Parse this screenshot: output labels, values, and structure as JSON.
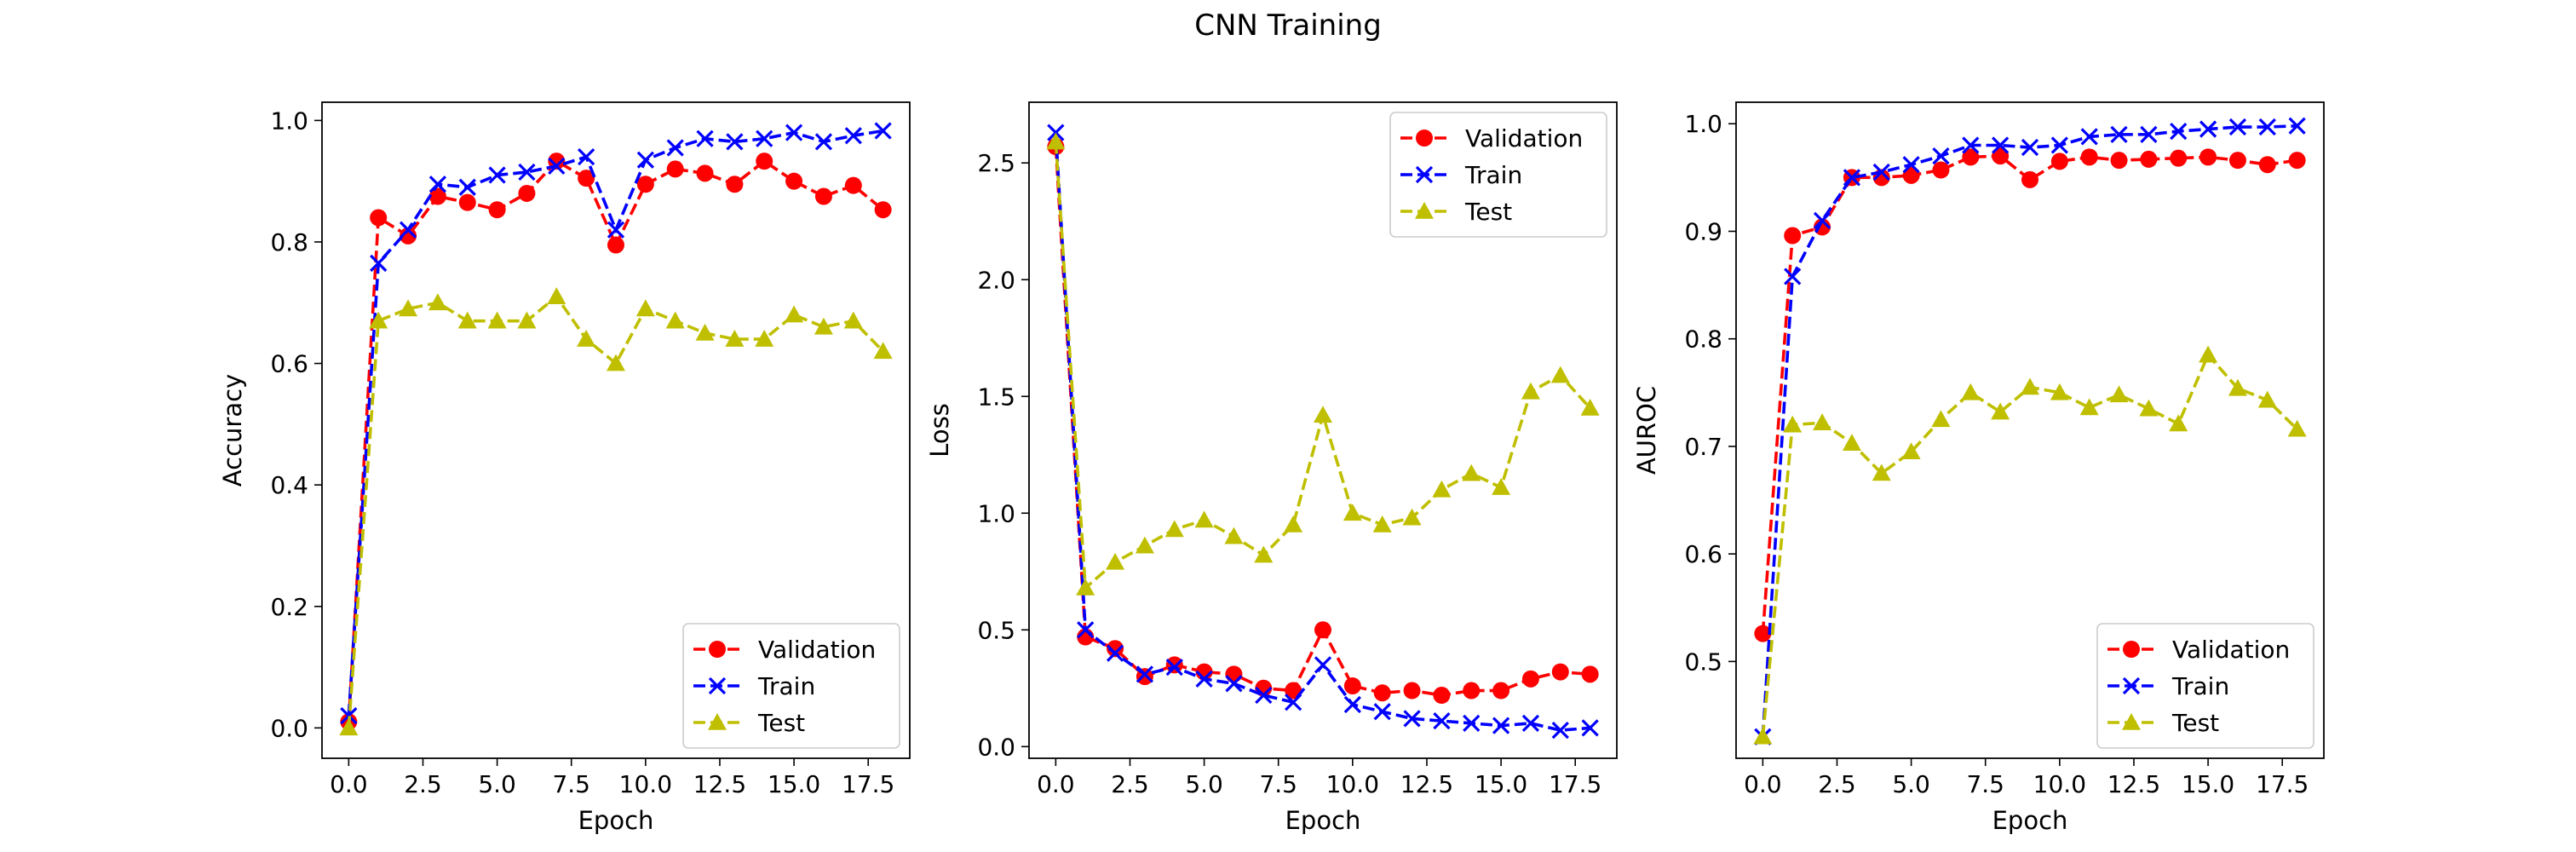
{
  "figure": {
    "title": "CNN Training"
  },
  "colors": {
    "Validation": "#ff0000",
    "Train": "#0000ff",
    "Test": "#bfbf00"
  },
  "chart_data": [
    {
      "type": "line",
      "xlabel": "Epoch",
      "ylabel": "Accuracy",
      "xlim": [
        -0.9,
        18.9
      ],
      "ylim": [
        -0.05,
        1.03
      ],
      "xticks": [
        0.0,
        2.5,
        5.0,
        7.5,
        10.0,
        12.5,
        15.0,
        17.5
      ],
      "yticks": [
        0.0,
        0.2,
        0.4,
        0.6,
        0.8,
        1.0
      ],
      "legend": "lower-right",
      "x": [
        0,
        1,
        2,
        3,
        4,
        5,
        6,
        7,
        8,
        9,
        10,
        11,
        12,
        13,
        14,
        15,
        16,
        17,
        18
      ],
      "series": [
        {
          "name": "Validation",
          "marker": "circle",
          "values": [
            0.01,
            0.84,
            0.81,
            0.875,
            0.865,
            0.853,
            0.88,
            0.933,
            0.905,
            0.795,
            0.895,
            0.92,
            0.913,
            0.895,
            0.933,
            0.9,
            0.875,
            0.893,
            0.853
          ]
        },
        {
          "name": "Train",
          "marker": "x",
          "values": [
            0.02,
            0.765,
            0.82,
            0.895,
            0.89,
            0.91,
            0.915,
            0.925,
            0.94,
            0.82,
            0.935,
            0.955,
            0.97,
            0.965,
            0.97,
            0.98,
            0.965,
            0.975,
            0.983
          ]
        },
        {
          "name": "Test",
          "marker": "triangle",
          "values": [
            0.0,
            0.67,
            0.69,
            0.7,
            0.67,
            0.67,
            0.67,
            0.71,
            0.64,
            0.6,
            0.69,
            0.67,
            0.65,
            0.64,
            0.64,
            0.68,
            0.66,
            0.67,
            0.62
          ]
        }
      ]
    },
    {
      "type": "line",
      "xlabel": "Epoch",
      "ylabel": "Loss",
      "xlim": [
        -0.9,
        18.9
      ],
      "ylim": [
        -0.05,
        2.76
      ],
      "xticks": [
        0.0,
        2.5,
        5.0,
        7.5,
        10.0,
        12.5,
        15.0,
        17.5
      ],
      "yticks": [
        0.0,
        0.5,
        1.0,
        1.5,
        2.0,
        2.5
      ],
      "legend": "upper-right",
      "x": [
        0,
        1,
        2,
        3,
        4,
        5,
        6,
        7,
        8,
        9,
        10,
        11,
        12,
        13,
        14,
        15,
        16,
        17,
        18
      ],
      "series": [
        {
          "name": "Validation",
          "marker": "circle",
          "values": [
            2.57,
            0.47,
            0.42,
            0.3,
            0.35,
            0.32,
            0.31,
            0.25,
            0.24,
            0.5,
            0.26,
            0.23,
            0.24,
            0.22,
            0.24,
            0.24,
            0.29,
            0.32,
            0.31
          ]
        },
        {
          "name": "Train",
          "marker": "x",
          "values": [
            2.63,
            0.5,
            0.4,
            0.31,
            0.34,
            0.29,
            0.27,
            0.22,
            0.19,
            0.35,
            0.18,
            0.15,
            0.12,
            0.11,
            0.1,
            0.09,
            0.1,
            0.07,
            0.08
          ]
        },
        {
          "name": "Test",
          "marker": "triangle",
          "values": [
            2.59,
            0.68,
            0.79,
            0.86,
            0.93,
            0.97,
            0.9,
            0.82,
            0.95,
            1.42,
            1.0,
            0.95,
            0.98,
            1.1,
            1.17,
            1.11,
            1.52,
            1.59,
            1.45
          ]
        }
      ]
    },
    {
      "type": "line",
      "xlabel": "Epoch",
      "ylabel": "AUROC",
      "xlim": [
        -0.9,
        18.9
      ],
      "ylim": [
        0.41,
        1.02
      ],
      "xticks": [
        0.0,
        2.5,
        5.0,
        7.5,
        10.0,
        12.5,
        15.0,
        17.5
      ],
      "yticks": [
        0.5,
        0.6,
        0.7,
        0.8,
        0.9,
        1.0
      ],
      "legend": "lower-right",
      "x": [
        0,
        1,
        2,
        3,
        4,
        5,
        6,
        7,
        8,
        9,
        10,
        11,
        12,
        13,
        14,
        15,
        16,
        17,
        18
      ],
      "series": [
        {
          "name": "Validation",
          "marker": "circle",
          "values": [
            0.526,
            0.896,
            0.904,
            0.95,
            0.95,
            0.952,
            0.957,
            0.969,
            0.97,
            0.948,
            0.965,
            0.969,
            0.966,
            0.967,
            0.968,
            0.969,
            0.966,
            0.962,
            0.966
          ]
        },
        {
          "name": "Train",
          "marker": "x",
          "values": [
            0.43,
            0.858,
            0.91,
            0.95,
            0.955,
            0.962,
            0.97,
            0.98,
            0.98,
            0.978,
            0.98,
            0.988,
            0.99,
            0.99,
            0.993,
            0.995,
            0.997,
            0.997,
            0.998
          ]
        },
        {
          "name": "Test",
          "marker": "triangle",
          "values": [
            0.43,
            0.72,
            0.722,
            0.703,
            0.675,
            0.695,
            0.725,
            0.75,
            0.732,
            0.755,
            0.75,
            0.736,
            0.748,
            0.735,
            0.721,
            0.785,
            0.754,
            0.743,
            0.716
          ]
        }
      ]
    }
  ]
}
